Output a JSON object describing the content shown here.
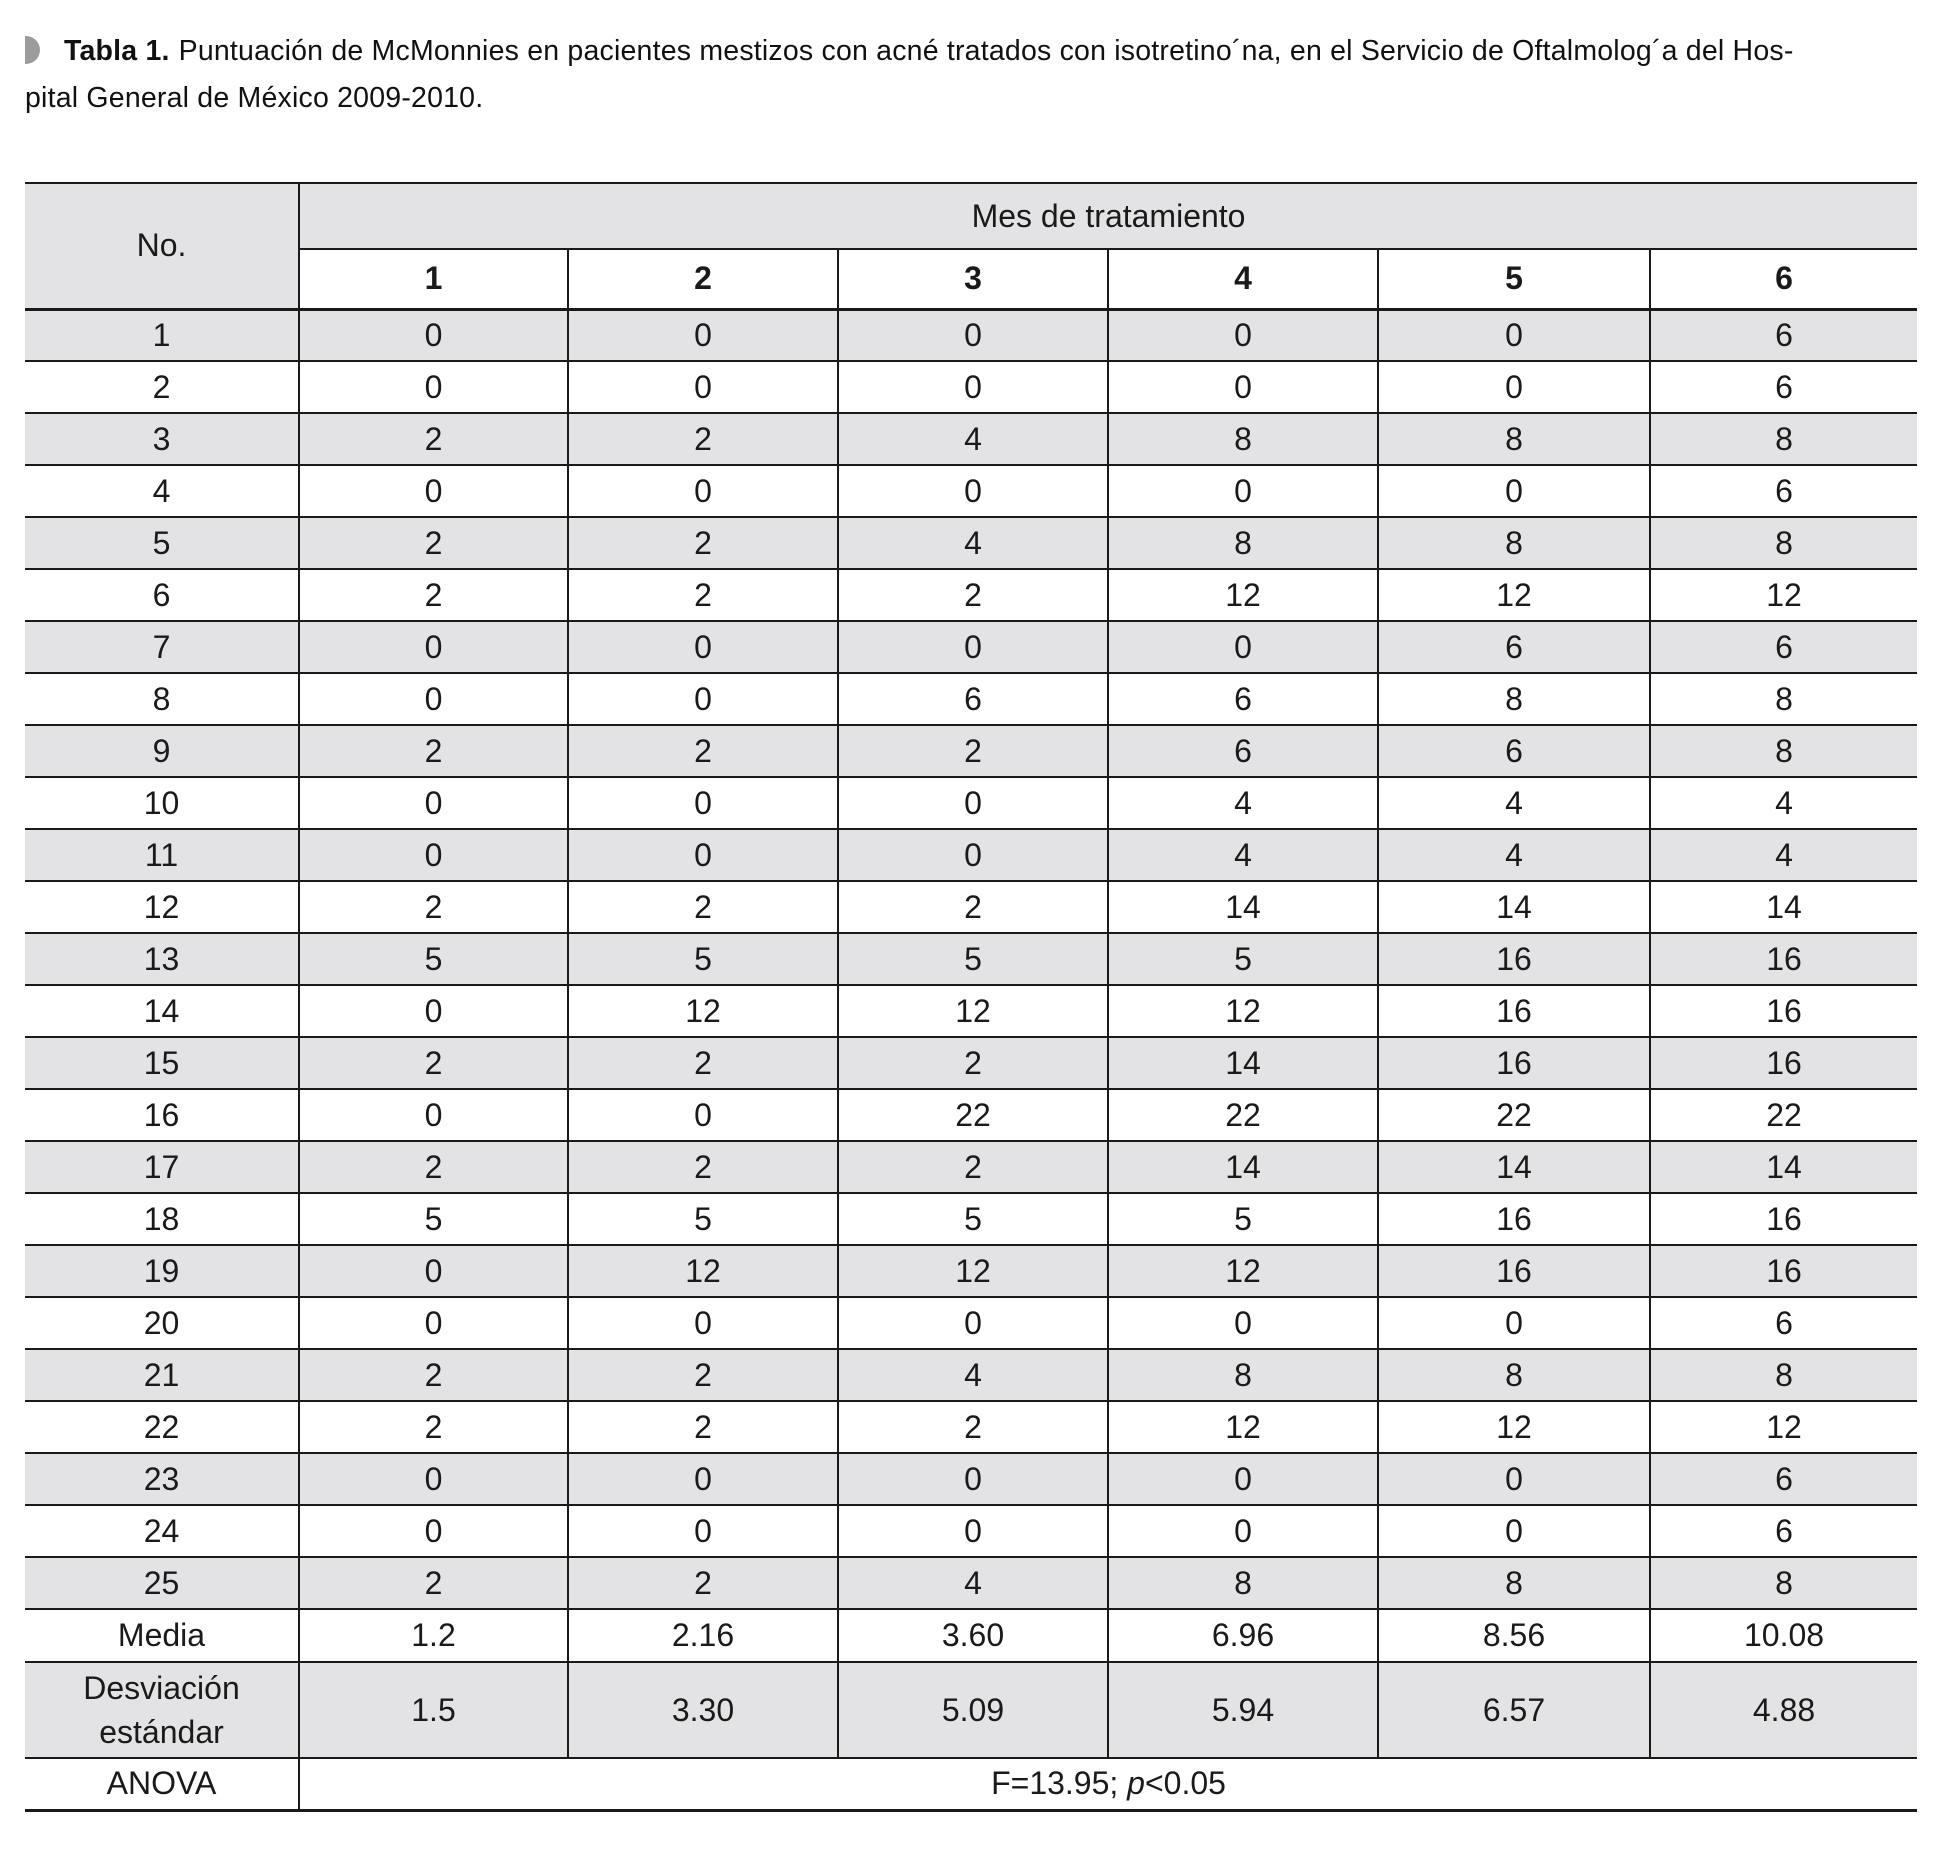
{
  "caption": {
    "bullet_icon": "half-circle-marker",
    "label": "Tabla 1.",
    "text_line1": "Puntuación de McMonnies en pacientes mestizos con acné tratados con isotretino´na, en el Servicio de Oftalmolog´a del Hos-",
    "text_line2": "pital General de México 2009-2010."
  },
  "table": {
    "corner_label": "No.",
    "group_header": "Mes de tratamiento",
    "month_headers": [
      "1",
      "2",
      "3",
      "4",
      "5",
      "6"
    ],
    "rows": [
      {
        "no": "1",
        "values": [
          "0",
          "0",
          "0",
          "0",
          "0",
          "6"
        ]
      },
      {
        "no": "2",
        "values": [
          "0",
          "0",
          "0",
          "0",
          "0",
          "6"
        ]
      },
      {
        "no": "3",
        "values": [
          "2",
          "2",
          "4",
          "8",
          "8",
          "8"
        ]
      },
      {
        "no": "4",
        "values": [
          "0",
          "0",
          "0",
          "0",
          "0",
          "6"
        ]
      },
      {
        "no": "5",
        "values": [
          "2",
          "2",
          "4",
          "8",
          "8",
          "8"
        ]
      },
      {
        "no": "6",
        "values": [
          "2",
          "2",
          "2",
          "12",
          "12",
          "12"
        ]
      },
      {
        "no": "7",
        "values": [
          "0",
          "0",
          "0",
          "0",
          "6",
          "6"
        ]
      },
      {
        "no": "8",
        "values": [
          "0",
          "0",
          "6",
          "6",
          "8",
          "8"
        ]
      },
      {
        "no": "9",
        "values": [
          "2",
          "2",
          "2",
          "6",
          "6",
          "8"
        ]
      },
      {
        "no": "10",
        "values": [
          "0",
          "0",
          "0",
          "4",
          "4",
          "4"
        ]
      },
      {
        "no": "11",
        "values": [
          "0",
          "0",
          "0",
          "4",
          "4",
          "4"
        ]
      },
      {
        "no": "12",
        "values": [
          "2",
          "2",
          "2",
          "14",
          "14",
          "14"
        ]
      },
      {
        "no": "13",
        "values": [
          "5",
          "5",
          "5",
          "5",
          "16",
          "16"
        ]
      },
      {
        "no": "14",
        "values": [
          "0",
          "12",
          "12",
          "12",
          "16",
          "16"
        ]
      },
      {
        "no": "15",
        "values": [
          "2",
          "2",
          "2",
          "14",
          "16",
          "16"
        ]
      },
      {
        "no": "16",
        "values": [
          "0",
          "0",
          "22",
          "22",
          "22",
          "22"
        ]
      },
      {
        "no": "17",
        "values": [
          "2",
          "2",
          "2",
          "14",
          "14",
          "14"
        ]
      },
      {
        "no": "18",
        "values": [
          "5",
          "5",
          "5",
          "5",
          "16",
          "16"
        ]
      },
      {
        "no": "19",
        "values": [
          "0",
          "12",
          "12",
          "12",
          "16",
          "16"
        ]
      },
      {
        "no": "20",
        "values": [
          "0",
          "0",
          "0",
          "0",
          "0",
          "6"
        ]
      },
      {
        "no": "21",
        "values": [
          "2",
          "2",
          "4",
          "8",
          "8",
          "8"
        ]
      },
      {
        "no": "22",
        "values": [
          "2",
          "2",
          "2",
          "12",
          "12",
          "12"
        ]
      },
      {
        "no": "23",
        "values": [
          "0",
          "0",
          "0",
          "0",
          "0",
          "6"
        ]
      },
      {
        "no": "24",
        "values": [
          "0",
          "0",
          "0",
          "0",
          "0",
          "6"
        ]
      },
      {
        "no": "25",
        "values": [
          "2",
          "2",
          "4",
          "8",
          "8",
          "8"
        ]
      }
    ],
    "media": {
      "label": "Media",
      "values": [
        "1.2",
        "2.16",
        "3.60",
        "6.96",
        "8.56",
        "10.08"
      ]
    },
    "std_dev": {
      "label_line1": "Desviación",
      "label_line2": "estándar",
      "values": [
        "1.5",
        "3.30",
        "5.09",
        "5.94",
        "6.57",
        "4.88"
      ]
    },
    "anova": {
      "label": "ANOVA",
      "value_prefix": "F=13.95; ",
      "value_p": "p",
      "value_suffix": "<0.05"
    }
  },
  "colors": {
    "row_shade": "#e3e3e5",
    "border": "#1a1a1a",
    "bullet": "#9c9c9c"
  }
}
